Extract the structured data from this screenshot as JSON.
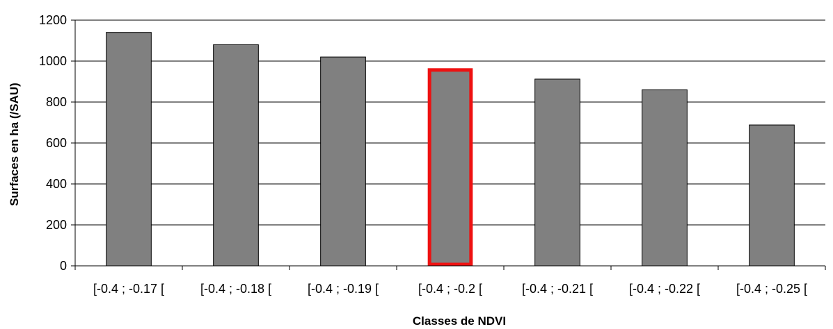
{
  "chart_data": {
    "type": "bar",
    "title": "",
    "xlabel": "Classes de  NDVI",
    "ylabel": "Surfaces en ha (/SAU)",
    "ylim": [
      0,
      1200
    ],
    "yticks": [
      "0",
      "200",
      "400",
      "600",
      "800",
      "1000",
      "1200"
    ],
    "grid": true,
    "legend": "none",
    "categories": [
      "[-0.4 ; -0.17 [",
      "[-0.4 ; -0.18 [",
      "[-0.4 ; -0.19 [",
      "[-0.4 ; -0.2 [",
      "[-0.4 ; -0.21 [",
      "[-0.4 ; -0.22 [",
      "[-0.4 ; -0.25 ["
    ],
    "values": [
      1140,
      1080,
      1020,
      960,
      912,
      860,
      688
    ],
    "highlighted_category": "[-0.4 ; -0.2 [",
    "colors": {
      "bar_fill": "#808080",
      "bar_stroke": "#000000",
      "highlight_stroke": "#ee1111",
      "gridline": "#000000"
    }
  }
}
